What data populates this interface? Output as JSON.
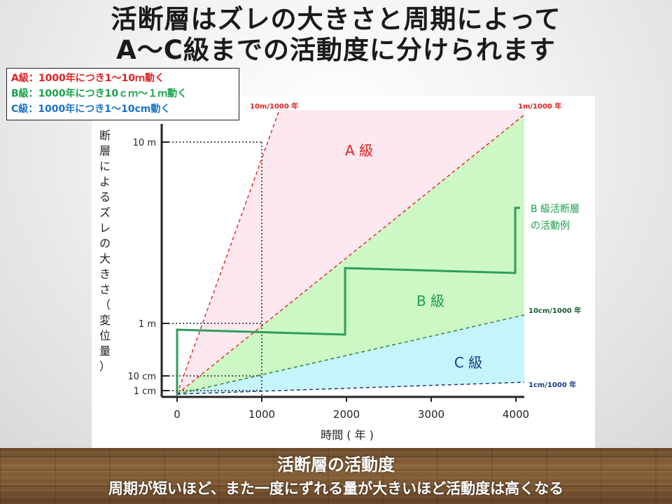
{
  "title": {
    "line1": "活断層はズレの大きさと周期によって",
    "line2": "A〜C級までの活動度に分けられます"
  },
  "legend": {
    "a": "A級：1000年につき1〜10ｍ動く",
    "b": "B級：1000年につき10ｃｍ〜１ｍ動く",
    "c": "C級：1000年につき1〜10cm動く"
  },
  "colors": {
    "a_text": "#e02020",
    "b_text": "#1aa04a",
    "c_text": "#1a74c8",
    "zone_a": "#fde8ef",
    "zone_b": "#cdf7c4",
    "zone_c": "#c6f4fb",
    "example_line": "#2e9e5a"
  },
  "diagram": {
    "y_axis_label": [
      "断",
      "層",
      "に",
      "よ",
      "る",
      "ズ",
      "レ",
      "の",
      "大",
      "き",
      "さ",
      "（",
      "変",
      "位",
      "量",
      "）"
    ],
    "y_ticks": [
      "10 m",
      "1 m",
      "10 cm",
      "1 cm"
    ],
    "x_ticks": [
      "0",
      "1000",
      "2000",
      "3000",
      "4000"
    ],
    "x_label": "時間 ( 年 )",
    "line_labels": {
      "a_top": "10m/1000 年",
      "b_top": "1m/1000 年",
      "c_top": "10cm/1000 年",
      "c_bottom": "1cm/1000 年"
    },
    "zone_labels": {
      "a": "A 級",
      "b": "B 級",
      "c": "C 級"
    },
    "example_label": [
      "B 級活断層",
      "の活動例"
    ]
  },
  "footer": {
    "title": "活断層の活動度",
    "subtitle": "周期が短いほど、また一度にずれる量が大きいほど活動度は高くなる"
  }
}
